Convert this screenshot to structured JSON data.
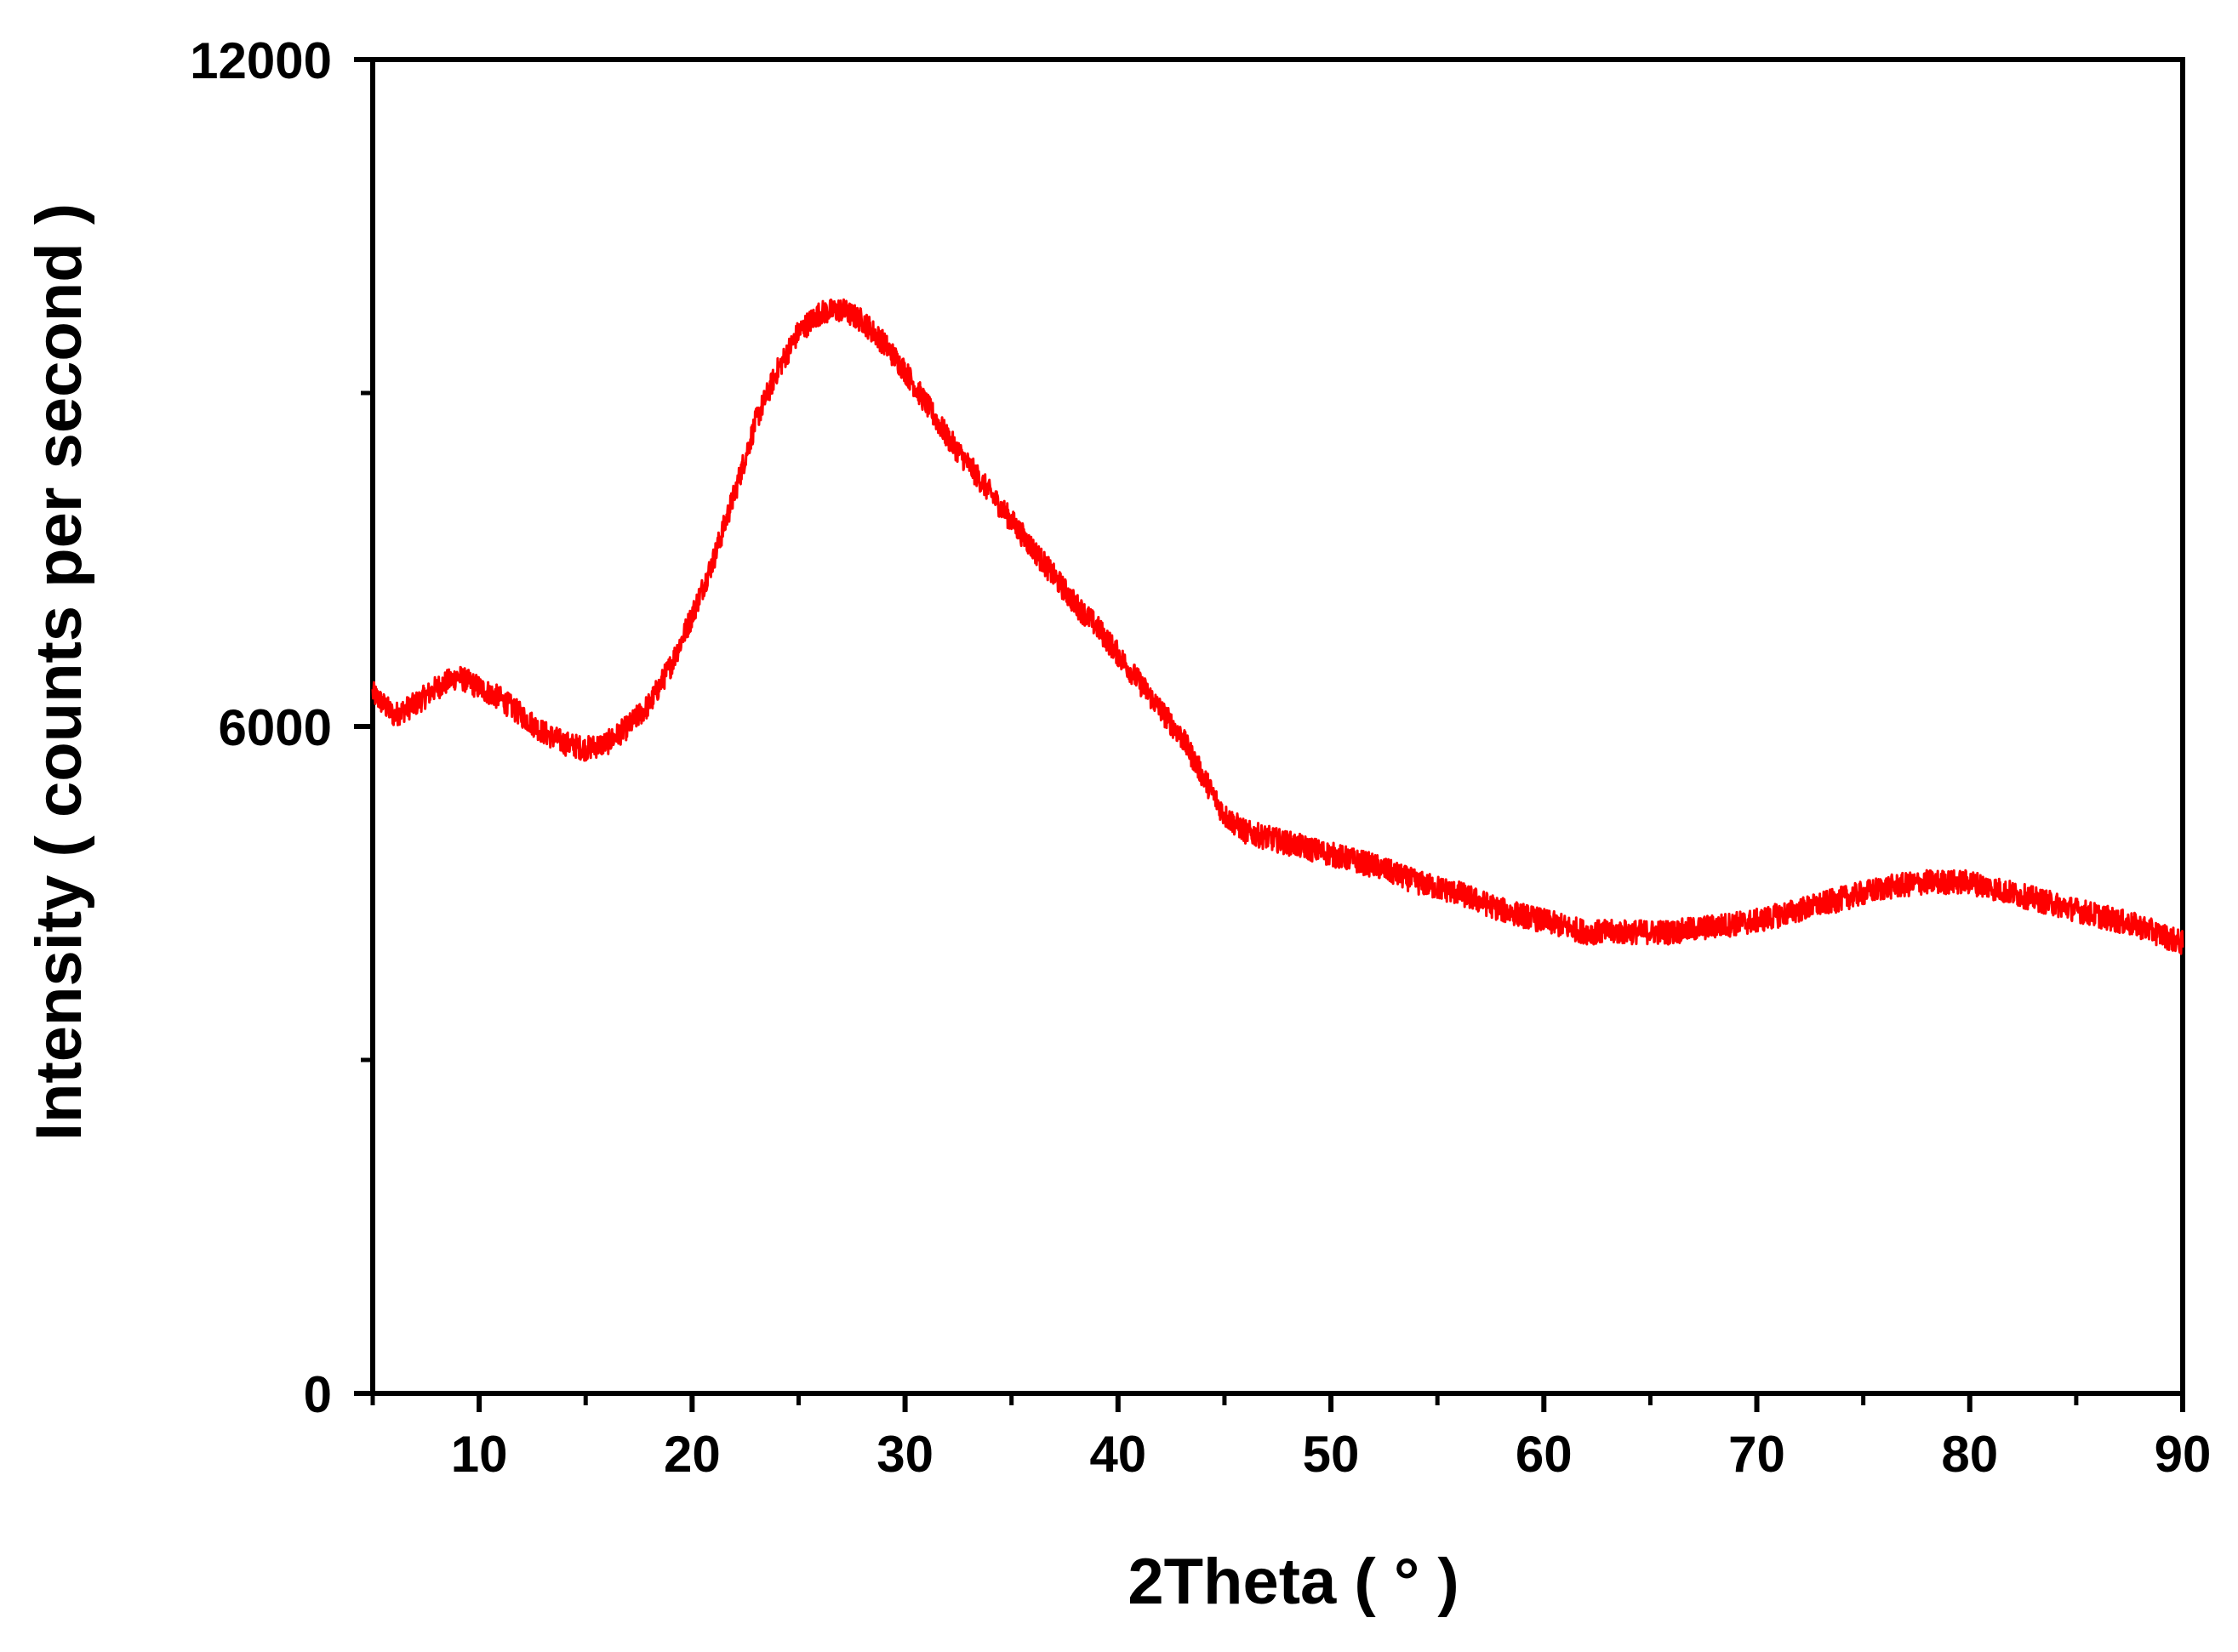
{
  "chart_data": {
    "type": "line",
    "xlabel": "2Theta ( ° )",
    "ylabel": "Intensity ( counts per second )",
    "xlim": [
      5,
      90
    ],
    "ylim": [
      0,
      12000
    ],
    "x_ticks_major": [
      10,
      20,
      30,
      40,
      50,
      60,
      70,
      80,
      90
    ],
    "x_ticks_minor": [
      5,
      15,
      25,
      35,
      45,
      55,
      65,
      75,
      85
    ],
    "y_ticks_major": [
      0,
      6000,
      12000
    ],
    "y_tick_labels": [
      "0",
      "6000",
      "12000"
    ],
    "y_ticks_minor": [
      3000,
      9000
    ],
    "grid": false,
    "legend": "none",
    "line_color": "#ff0000",
    "noise_amplitude": 110,
    "series": [
      {
        "x": [
          5,
          6,
          7,
          8,
          9,
          10,
          11,
          12,
          13,
          14,
          15,
          16,
          17,
          18,
          19,
          20,
          21,
          22,
          23,
          24,
          25,
          26,
          27,
          28,
          29,
          30,
          31,
          32,
          33,
          34,
          35,
          36,
          37,
          38,
          39,
          40,
          41,
          42,
          43,
          44,
          45,
          46,
          47,
          48,
          49,
          50,
          52,
          54,
          56,
          58,
          60,
          62,
          64,
          66,
          68,
          70,
          72,
          74,
          76,
          78,
          80,
          82,
          84,
          86,
          88,
          90
        ],
        "y": [
          6300,
          6100,
          6200,
          6350,
          6450,
          6350,
          6250,
          6100,
          5950,
          5850,
          5800,
          5850,
          6000,
          6200,
          6550,
          7000,
          7500,
          8100,
          8750,
          9200,
          9550,
          9720,
          9750,
          9650,
          9450,
          9200,
          8900,
          8600,
          8350,
          8100,
          7850,
          7600,
          7350,
          7100,
          6900,
          6650,
          6400,
          6150,
          5900,
          5550,
          5200,
          5050,
          5000,
          4950,
          4900,
          4850,
          4750,
          4600,
          4500,
          4350,
          4250,
          4150,
          4150,
          4150,
          4200,
          4250,
          4350,
          4450,
          4550,
          4600,
          4600,
          4500,
          4400,
          4300,
          4200,
          4050
        ]
      }
    ]
  }
}
